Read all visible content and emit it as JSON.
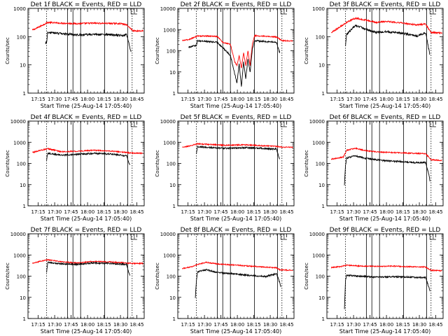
{
  "colors": {
    "events": "#000000",
    "lld": "#ff0000",
    "axes": "#000000"
  },
  "chart_data": [
    {
      "type": "line",
      "title": "Det 1f BLACK = Events, RED = LLD",
      "xlabel": "Start Time (25-Aug-14 17:05:40)",
      "ylabel": "Counts/sec",
      "y_scale": "log",
      "ylim": [
        1,
        1000
      ],
      "yticks": [
        "1",
        "10",
        "100",
        "1000"
      ],
      "x_unit": "minutes after 17:05:40",
      "xlim": [
        0,
        106
      ],
      "xticks": [
        "17:15",
        "17:30",
        "17:45",
        "18:00",
        "18:15",
        "18:30",
        "18:45"
      ],
      "dotted_lines_x": [
        17,
        95
      ],
      "vertical_lines_x": [
        36,
        41,
        48,
        70,
        91
      ],
      "red_level": [
        [
          4,
          170
        ],
        [
          8,
          200
        ],
        [
          18,
          320
        ],
        [
          30,
          300
        ],
        [
          45,
          290
        ],
        [
          60,
          300
        ],
        [
          72,
          295
        ],
        [
          85,
          290
        ],
        [
          90,
          260
        ],
        [
          96,
          160
        ],
        [
          105,
          160
        ]
      ],
      "black_level": [
        [
          16,
          60
        ],
        [
          17,
          65
        ],
        [
          18,
          140
        ],
        [
          30,
          130
        ],
        [
          45,
          115
        ],
        [
          60,
          120
        ],
        [
          72,
          118
        ],
        [
          85,
          110
        ],
        [
          90,
          120
        ],
        [
          93,
          40
        ],
        [
          94,
          28
        ]
      ]
    },
    {
      "type": "line",
      "title": "Det 2f BLACK = Events, RED = LLD",
      "xlabel": "Start Time (25-Aug-14 17:05:40)",
      "ylabel": "Counts/sec",
      "y_scale": "log",
      "ylim": [
        1,
        10000
      ],
      "yticks": [
        "1",
        "10",
        "100",
        "1000",
        "10000"
      ],
      "x_unit": "minutes after 17:05:40",
      "xlim": [
        0,
        106
      ],
      "xticks": [
        "17:15",
        "17:30",
        "17:45",
        "18:00",
        "18:15",
        "18:30",
        "18:45"
      ],
      "dotted_lines_x": [
        17,
        95
      ],
      "vertical_lines_x": [
        36,
        41,
        48,
        70,
        91
      ],
      "red_level": [
        [
          4,
          300
        ],
        [
          10,
          340
        ],
        [
          18,
          500
        ],
        [
          36,
          480
        ],
        [
          41,
          250
        ],
        [
          48,
          200
        ],
        [
          52,
          30
        ],
        [
          54,
          20
        ],
        [
          56,
          60
        ],
        [
          58,
          15
        ],
        [
          60,
          80
        ],
        [
          62,
          20
        ],
        [
          64,
          100
        ],
        [
          66,
          20
        ],
        [
          68,
          200
        ],
        [
          70,
          520
        ],
        [
          90,
          450
        ],
        [
          95,
          300
        ],
        [
          105,
          290
        ]
      ],
      "black_level": [
        [
          10,
          150
        ],
        [
          17,
          180
        ],
        [
          18,
          300
        ],
        [
          36,
          250
        ],
        [
          41,
          140
        ],
        [
          48,
          60
        ],
        [
          52,
          8
        ],
        [
          54,
          3
        ],
        [
          56,
          25
        ],
        [
          58,
          2
        ],
        [
          60,
          30
        ],
        [
          62,
          5
        ],
        [
          64,
          40
        ],
        [
          66,
          10
        ],
        [
          68,
          120
        ],
        [
          70,
          300
        ],
        [
          90,
          250
        ],
        [
          93,
          80
        ]
      ]
    },
    {
      "type": "line",
      "title": "Det 3f BLACK = Events, RED = LLD",
      "xlabel": "Start Time (25-Aug-14 17:05:40)",
      "ylabel": "Counts/sec",
      "y_scale": "log",
      "ylim": [
        1,
        1000
      ],
      "yticks": [
        "1",
        "10",
        "100",
        "1000"
      ],
      "x_unit": "minutes after 17:05:40",
      "xlim": [
        0,
        106
      ],
      "xticks": [
        "17:15",
        "17:30",
        "17:45",
        "18:00",
        "18:15",
        "18:30",
        "18:45"
      ],
      "dotted_lines_x": [
        17,
        95
      ],
      "vertical_lines_x": [
        36,
        41,
        48,
        70,
        91
      ],
      "red_level": [
        [
          4,
          140
        ],
        [
          18,
          320
        ],
        [
          26,
          450
        ],
        [
          36,
          380
        ],
        [
          45,
          320
        ],
        [
          55,
          350
        ],
        [
          70,
          300
        ],
        [
          82,
          260
        ],
        [
          90,
          280
        ],
        [
          95,
          140
        ],
        [
          105,
          135
        ]
      ],
      "black_level": [
        [
          17,
          50
        ],
        [
          18,
          120
        ],
        [
          26,
          250
        ],
        [
          36,
          180
        ],
        [
          45,
          140
        ],
        [
          55,
          150
        ],
        [
          70,
          130
        ],
        [
          82,
          105
        ],
        [
          90,
          140
        ],
        [
          93,
          35
        ],
        [
          94,
          22
        ]
      ]
    },
    {
      "type": "line",
      "title": "Det 4f BLACK = Events, RED = LLD",
      "xlabel": "Start Time (25-Aug-14 17:05:40)",
      "ylabel": "Counts/sec",
      "y_scale": "log",
      "ylim": [
        1,
        10000
      ],
      "yticks": [
        "1",
        "10",
        "100",
        "1000",
        "10000"
      ],
      "x_unit": "minutes after 17:05:40",
      "xlim": [
        0,
        106
      ],
      "xticks": [
        "17:15",
        "17:30",
        "17:45",
        "18:00",
        "18:15",
        "18:30",
        "18:45"
      ],
      "dotted_lines_x": [
        17,
        95
      ],
      "vertical_lines_x": [
        36,
        41,
        48,
        70,
        91
      ],
      "red_level": [
        [
          4,
          330
        ],
        [
          10,
          400
        ],
        [
          18,
          500
        ],
        [
          30,
          360
        ],
        [
          45,
          380
        ],
        [
          60,
          420
        ],
        [
          75,
          390
        ],
        [
          90,
          330
        ],
        [
          95,
          310
        ],
        [
          105,
          300
        ]
      ],
      "black_level": [
        [
          17,
          150
        ],
        [
          18,
          300
        ],
        [
          30,
          250
        ],
        [
          45,
          270
        ],
        [
          60,
          300
        ],
        [
          75,
          280
        ],
        [
          90,
          230
        ],
        [
          93,
          80
        ]
      ]
    },
    {
      "type": "line",
      "title": "Det 5f BLACK = Events, RED = LLD",
      "xlabel": "Start Time (25-Aug-14 17:05:40)",
      "ylabel": "Counts/sec",
      "y_scale": "log",
      "ylim": [
        1,
        10000
      ],
      "yticks": [
        "1",
        "10",
        "100",
        "1000",
        "10000"
      ],
      "x_unit": "minutes after 17:05:40",
      "xlim": [
        0,
        106
      ],
      "xticks": [
        "17:15",
        "17:30",
        "17:45",
        "18:00",
        "18:15",
        "18:30",
        "18:45"
      ],
      "dotted_lines_x": [
        17,
        95
      ],
      "vertical_lines_x": [
        36,
        41,
        48,
        70,
        91
      ],
      "red_level": [
        [
          4,
          580
        ],
        [
          10,
          650
        ],
        [
          18,
          850
        ],
        [
          30,
          780
        ],
        [
          45,
          720
        ],
        [
          60,
          760
        ],
        [
          75,
          700
        ],
        [
          90,
          640
        ],
        [
          95,
          590
        ],
        [
          105,
          580
        ]
      ],
      "black_level": [
        [
          17,
          300
        ],
        [
          18,
          620
        ],
        [
          30,
          560
        ],
        [
          45,
          520
        ],
        [
          60,
          560
        ],
        [
          75,
          520
        ],
        [
          90,
          480
        ],
        [
          93,
          150
        ]
      ]
    },
    {
      "type": "line",
      "title": "Det 6f BLACK = Events, RED = LLD",
      "xlabel": "Start Time (25-Aug-14 17:05:40)",
      "ylabel": "Counts/sec",
      "y_scale": "log",
      "ylim": [
        1,
        10000
      ],
      "yticks": [
        "1",
        "10",
        "100",
        "1000",
        "10000"
      ],
      "x_unit": "minutes after 17:05:40",
      "xlim": [
        0,
        106
      ],
      "xticks": [
        "17:15",
        "17:30",
        "17:45",
        "18:00",
        "18:15",
        "18:30",
        "18:45"
      ],
      "dotted_lines_x": [
        17,
        95
      ],
      "vertical_lines_x": [
        36,
        41,
        48,
        70,
        91
      ],
      "red_level": [
        [
          4,
          160
        ],
        [
          15,
          200
        ],
        [
          18,
          420
        ],
        [
          26,
          520
        ],
        [
          36,
          400
        ],
        [
          50,
          340
        ],
        [
          65,
          320
        ],
        [
          80,
          300
        ],
        [
          90,
          290
        ],
        [
          95,
          150
        ],
        [
          105,
          140
        ]
      ],
      "black_level": [
        [
          16,
          10
        ],
        [
          17,
          80
        ],
        [
          18,
          180
        ],
        [
          26,
          230
        ],
        [
          36,
          170
        ],
        [
          50,
          140
        ],
        [
          65,
          125
        ],
        [
          80,
          110
        ],
        [
          90,
          110
        ],
        [
          93,
          30
        ],
        [
          94,
          15
        ]
      ]
    },
    {
      "type": "line",
      "title": "Det 7f BLACK = Events, RED = LLD",
      "xlabel": "Start Time (25-Aug-14 17:05:40)",
      "ylabel": "Counts/sec",
      "y_scale": "log",
      "ylim": [
        1,
        10000
      ],
      "yticks": [
        "1",
        "10",
        "100",
        "1000",
        "10000"
      ],
      "x_unit": "minutes after 17:05:40",
      "xlim": [
        0,
        106
      ],
      "xticks": [
        "17:15",
        "17:30",
        "17:45",
        "18:00",
        "18:15",
        "18:30",
        "18:45"
      ],
      "dotted_lines_x": [
        17,
        95
      ],
      "vertical_lines_x": [
        36,
        41,
        48,
        70,
        91
      ],
      "red_level": [
        [
          4,
          400
        ],
        [
          12,
          520
        ],
        [
          18,
          600
        ],
        [
          30,
          480
        ],
        [
          45,
          420
        ],
        [
          60,
          500
        ],
        [
          75,
          470
        ],
        [
          90,
          420
        ],
        [
          95,
          400
        ],
        [
          105,
          400
        ]
      ],
      "black_level": [
        [
          17,
          160
        ],
        [
          18,
          450
        ],
        [
          30,
          390
        ],
        [
          45,
          360
        ],
        [
          60,
          420
        ],
        [
          75,
          400
        ],
        [
          90,
          360
        ],
        [
          93,
          100
        ]
      ]
    },
    {
      "type": "line",
      "title": "Det 8f BLACK = Events, RED = LLD",
      "xlabel": "Start Time (25-Aug-14 17:05:40)",
      "ylabel": "Counts/sec",
      "y_scale": "log",
      "ylim": [
        1,
        10000
      ],
      "yticks": [
        "1",
        "10",
        "100",
        "1000",
        "10000"
      ],
      "x_unit": "minutes after 17:05:40",
      "xlim": [
        0,
        106
      ],
      "xticks": [
        "17:15",
        "17:30",
        "17:45",
        "18:00",
        "18:15",
        "18:30",
        "18:45"
      ],
      "dotted_lines_x": [
        17,
        95
      ],
      "vertical_lines_x": [
        36,
        41,
        48,
        70,
        91
      ],
      "red_level": [
        [
          4,
          230
        ],
        [
          12,
          270
        ],
        [
          18,
          350
        ],
        [
          26,
          450
        ],
        [
          36,
          380
        ],
        [
          50,
          340
        ],
        [
          65,
          300
        ],
        [
          80,
          270
        ],
        [
          90,
          250
        ],
        [
          93,
          200
        ],
        [
          105,
          190
        ]
      ],
      "black_level": [
        [
          16,
          10
        ],
        [
          17,
          60
        ],
        [
          18,
          160
        ],
        [
          26,
          200
        ],
        [
          36,
          150
        ],
        [
          50,
          130
        ],
        [
          65,
          110
        ],
        [
          80,
          95
        ],
        [
          90,
          130
        ],
        [
          93,
          50
        ],
        [
          94,
          30
        ]
      ]
    },
    {
      "type": "line",
      "title": "Det 9f BLACK = Events, RED = LLD",
      "xlabel": "Start Time (25-Aug-14 17:05:40)",
      "ylabel": "Counts/sec",
      "y_scale": "log",
      "ylim": [
        1,
        10000
      ],
      "yticks": [
        "1",
        "10",
        "100",
        "1000",
        "10000"
      ],
      "x_unit": "minutes after 17:05:40",
      "xlim": [
        0,
        106
      ],
      "xticks": [
        "17:15",
        "17:30",
        "17:45",
        "18:00",
        "18:15",
        "18:30",
        "18:45"
      ],
      "dotted_lines_x": [
        17,
        95
      ],
      "vertical_lines_x": [
        36,
        41,
        48,
        70,
        91
      ],
      "red_level": [
        [
          4,
          260
        ],
        [
          12,
          280
        ],
        [
          18,
          330
        ],
        [
          30,
          300
        ],
        [
          45,
          290
        ],
        [
          60,
          300
        ],
        [
          75,
          280
        ],
        [
          90,
          270
        ],
        [
          95,
          190
        ],
        [
          105,
          180
        ]
      ],
      "black_level": [
        [
          16,
          3
        ],
        [
          17,
          60
        ],
        [
          18,
          110
        ],
        [
          30,
          100
        ],
        [
          45,
          90
        ],
        [
          60,
          95
        ],
        [
          75,
          90
        ],
        [
          90,
          85
        ],
        [
          93,
          30
        ],
        [
          94,
          20
        ]
      ]
    }
  ]
}
